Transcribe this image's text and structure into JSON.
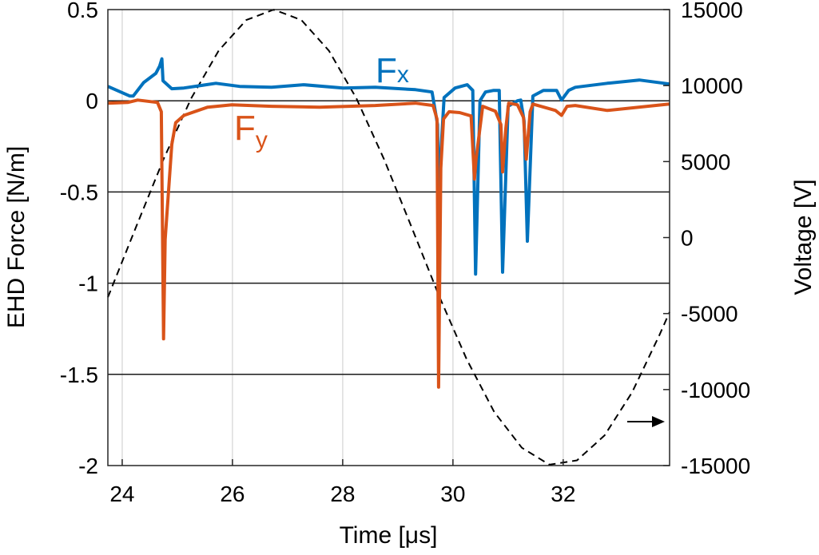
{
  "chart_data": {
    "type": "line",
    "xlabel": "Time [μs]",
    "ylabel": "EHD Force [N/m]",
    "ylabel_right": "Voltage [V]",
    "xlim": [
      23.74,
      33.93
    ],
    "ylim": [
      -2,
      0.5
    ],
    "ylim_right": [
      -15000,
      15000
    ],
    "xticks": [
      "24",
      "26",
      "28",
      "30",
      "32"
    ],
    "xtick_values": [
      24,
      26,
      28,
      30,
      32
    ],
    "yticks": [
      "0.5",
      "0",
      "-0.5",
      "-1",
      "-1.5",
      "-2"
    ],
    "ytick_values": [
      0.5,
      0,
      -0.5,
      -1,
      -1.5,
      -2
    ],
    "yticks_right": [
      "15000",
      "10000",
      "5000",
      "0",
      "-5000",
      "-10000",
      "-15000"
    ],
    "ytick_values_right": [
      15000,
      10000,
      5000,
      0,
      -5000,
      -10000,
      -15000
    ],
    "grid": "vertical light grid, horizontal lines at left-axis ticks",
    "annotation_arrow": "right-pointing arrow indicating voltage uses right axis",
    "series": [
      {
        "name": "Fx",
        "label": "F",
        "subscript": "x",
        "color": "#0072BD",
        "axis": "left",
        "x": [
          23.74,
          24.14,
          24.2,
          24.39,
          24.61,
          24.68,
          24.72,
          24.74,
          24.9,
          25.12,
          25.7,
          26.13,
          26.71,
          27.29,
          28.01,
          28.59,
          29.32,
          29.62,
          29.72,
          29.74,
          29.84,
          30.04,
          30.26,
          30.36,
          30.41,
          30.49,
          30.59,
          30.74,
          30.84,
          30.9,
          31.0,
          31.17,
          31.23,
          31.29,
          31.35,
          31.45,
          31.64,
          31.88,
          31.97,
          32.1,
          32.22,
          32.8,
          33.38,
          33.93
        ],
        "y": [
          0.079,
          0.026,
          0.026,
          0.1,
          0.15,
          0.19,
          0.23,
          0.11,
          0.066,
          0.07,
          0.096,
          0.079,
          0.074,
          0.088,
          0.07,
          0.074,
          0.061,
          0.048,
          -0.13,
          -0.5,
          0.018,
          0.07,
          0.088,
          0.057,
          -0.95,
          0.0,
          0.048,
          0.057,
          0.057,
          -0.94,
          -0.03,
          0.0,
          0.004,
          -0.11,
          -0.77,
          0.026,
          0.057,
          0.057,
          0.004,
          0.057,
          0.074,
          0.096,
          0.114,
          0.092
        ]
      },
      {
        "name": "Fy",
        "label": "F",
        "subscript": "y",
        "color": "#D95319",
        "axis": "left",
        "x": [
          23.74,
          24.1,
          24.28,
          24.39,
          24.64,
          24.71,
          24.75,
          24.78,
          24.9,
          24.97,
          25.12,
          25.55,
          25.99,
          26.71,
          27.58,
          28.59,
          29.32,
          29.64,
          29.71,
          29.74,
          29.78,
          29.83,
          29.93,
          30.12,
          30.33,
          30.39,
          30.42,
          30.54,
          30.77,
          30.87,
          30.9,
          30.96,
          31.01,
          31.17,
          31.28,
          31.33,
          31.4,
          31.45,
          31.86,
          31.97,
          32.07,
          32.22,
          32.8,
          33.93
        ],
        "y": [
          -0.013,
          -0.009,
          0.004,
          0.0,
          -0.009,
          -0.06,
          -1.305,
          -0.76,
          -0.24,
          -0.12,
          -0.08,
          -0.035,
          -0.022,
          -0.03,
          -0.035,
          -0.026,
          -0.013,
          -0.026,
          -0.1,
          -1.57,
          -0.37,
          -0.1,
          -0.06,
          -0.065,
          -0.083,
          -0.43,
          -0.32,
          -0.03,
          -0.057,
          -0.13,
          -0.39,
          -0.15,
          -0.013,
          -0.022,
          -0.092,
          -0.32,
          -0.06,
          -0.018,
          -0.053,
          -0.08,
          -0.03,
          -0.026,
          -0.053,
          -0.018
        ]
      },
      {
        "name": "Voltage",
        "color": "#000000",
        "style": "dashed",
        "axis": "right",
        "x": [
          23.74,
          24.25,
          24.75,
          25.25,
          25.75,
          26.25,
          26.75,
          27.25,
          27.75,
          28.25,
          28.75,
          29.25,
          29.75,
          30.25,
          30.75,
          31.25,
          31.75,
          32.25,
          32.75,
          33.25,
          33.75,
          33.93
        ],
        "y": [
          -3930,
          690,
          5160,
          9150,
          12300,
          14310,
          15000,
          14310,
          12300,
          9150,
          5160,
          690,
          -3850,
          -8010,
          -11480,
          -13830,
          -14940,
          -14660,
          -13020,
          -10180,
          -6380,
          -4900
        ]
      }
    ]
  }
}
